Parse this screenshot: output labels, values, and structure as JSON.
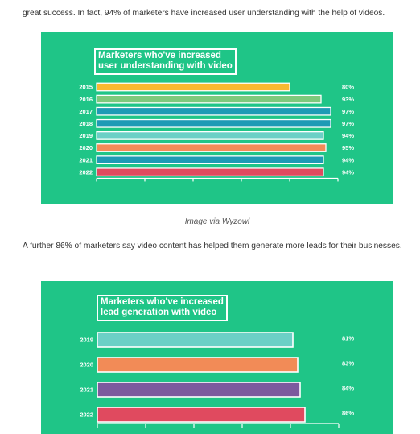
{
  "article": {
    "intro": "great success. In fact, 94% of marketers have increased user understanding with the help of videos.",
    "caption1": "Image via Wyzowl",
    "para2": "A further 86% of marketers say video content has helped them generate more leads for their businesses."
  },
  "chart_data": [
    {
      "type": "bar",
      "orientation": "horizontal",
      "title": "Marketers who've increased\nuser understanding with video",
      "categories": [
        "2015",
        "2016",
        "2017",
        "2018",
        "2019",
        "2020",
        "2021",
        "2022"
      ],
      "values": [
        80,
        93,
        97,
        97,
        94,
        95,
        94,
        94
      ],
      "value_labels": [
        "80%",
        "93%",
        "97%",
        "97%",
        "94%",
        "95%",
        "94%",
        "94%"
      ],
      "colors": [
        "#f8b931",
        "#7ec97c",
        "#1e9ab5",
        "#1e9ab5",
        "#6bd0c6",
        "#f28b57",
        "#1e9ab5",
        "#e04a5f"
      ],
      "xlim": [
        0,
        100
      ],
      "background": "#1fc587"
    },
    {
      "type": "bar",
      "orientation": "horizontal",
      "title": "Marketers who've increased\nlead generation with video",
      "categories": [
        "2019",
        "2020",
        "2021",
        "2022"
      ],
      "values": [
        81,
        83,
        84,
        86
      ],
      "value_labels": [
        "81%",
        "83%",
        "84%",
        "86%"
      ],
      "colors": [
        "#6bd0c6",
        "#f28b57",
        "#7c5a9e",
        "#e04a5f"
      ],
      "xlim": [
        0,
        100
      ],
      "background": "#1fc587"
    }
  ]
}
